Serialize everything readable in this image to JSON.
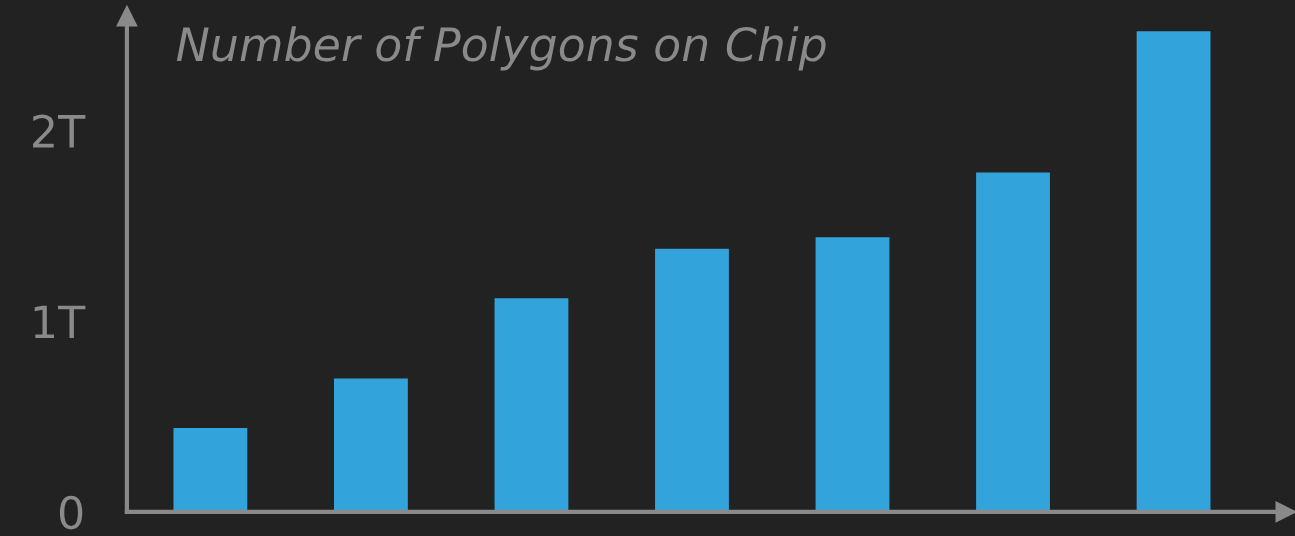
{
  "chart_data": {
    "type": "bar",
    "title": "Number of Polygons on Chip",
    "categories": [
      null,
      null,
      null,
      null,
      null,
      null,
      null
    ],
    "values": [
      0.44,
      0.7,
      1.12,
      1.38,
      1.44,
      1.78,
      2.52
    ],
    "color": "#33a3dc",
    "ylim": [
      0,
      2.6
    ],
    "yticks": [
      0,
      {
        "value": 1,
        "label": "1T"
      },
      {
        "value": 2,
        "label": "2T"
      }
    ],
    "grid": false,
    "legend": false
  }
}
